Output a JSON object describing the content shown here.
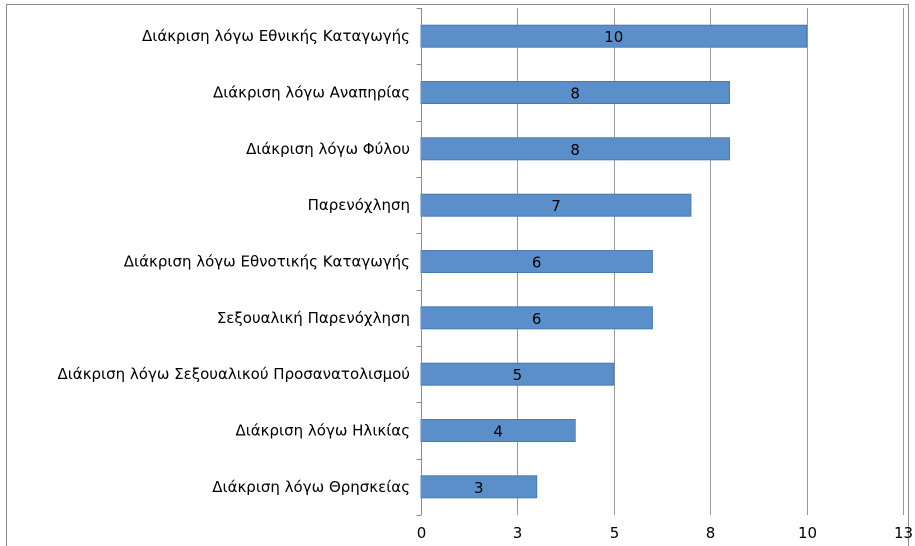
{
  "chart_data": {
    "type": "bar",
    "orientation": "horizontal",
    "categories": [
      "Διάκριση λόγω Εθνικής Καταγωγής",
      "Διάκριση λόγω Αναπηρίας",
      "Διάκριση λόγω Φύλου",
      "Παρενόχληση",
      "Διάκριση λόγω Εθνοτικής Καταγωγής",
      "Σεξουαλική Παρενόχληση",
      "Διάκριση λόγω Σεξουαλικού Προσανατολισμού",
      "Διάκριση λόγω Ηλικίας",
      "Διάκριση λόγω Θρησκείας"
    ],
    "values": [
      10,
      8,
      8,
      7,
      6,
      6,
      5,
      4,
      3
    ],
    "data_labels": [
      "10",
      "8",
      "8",
      "7",
      "6",
      "6",
      "5",
      "4",
      "3"
    ],
    "xlim": [
      0,
      12.5
    ],
    "ticks": [
      0,
      2.5,
      5,
      7.5,
      10,
      12.5
    ],
    "tick_labels": [
      "0",
      "3",
      "5",
      "8",
      "10",
      "13"
    ],
    "grid": "vertical",
    "legend": "none",
    "title": "",
    "xlabel": "",
    "ylabel": "",
    "colors": {
      "bar": "#5b8fc9",
      "bar_stroke": "#4a7ab0",
      "grid": "#9a9a9a",
      "border": "#8c8c8c",
      "text": "#000000"
    }
  }
}
